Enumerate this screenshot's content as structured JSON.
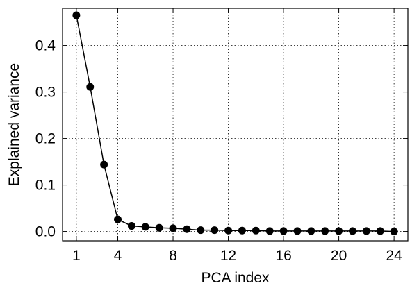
{
  "chart_data": {
    "type": "line",
    "xlabel": "PCA index",
    "ylabel": "Explained variance",
    "xlim": [
      0,
      25
    ],
    "ylim": [
      -0.02,
      0.48
    ],
    "xticks": [
      1,
      4,
      8,
      12,
      16,
      20,
      24
    ],
    "yticks": [
      0.0,
      0.1,
      0.2,
      0.3,
      0.4
    ],
    "ytick_labels": [
      "0.0",
      "0.1",
      "0.2",
      "0.3",
      "0.4"
    ],
    "grid": true,
    "series": [
      {
        "x": [
          1,
          2,
          3,
          4,
          5,
          6,
          7,
          8,
          9,
          10,
          11,
          12,
          13,
          14,
          15,
          16,
          17,
          18,
          19,
          20,
          21,
          22,
          23,
          24
        ],
        "values": [
          0.465,
          0.311,
          0.144,
          0.026,
          0.012,
          0.01,
          0.008,
          0.007,
          0.005,
          0.003,
          0.003,
          0.002,
          0.002,
          0.002,
          0.001,
          0.001,
          0.001,
          0.001,
          0.001,
          0.001,
          0.001,
          0.001,
          0.001,
          0.0
        ],
        "color": "#000000",
        "marker": "circle"
      }
    ]
  }
}
